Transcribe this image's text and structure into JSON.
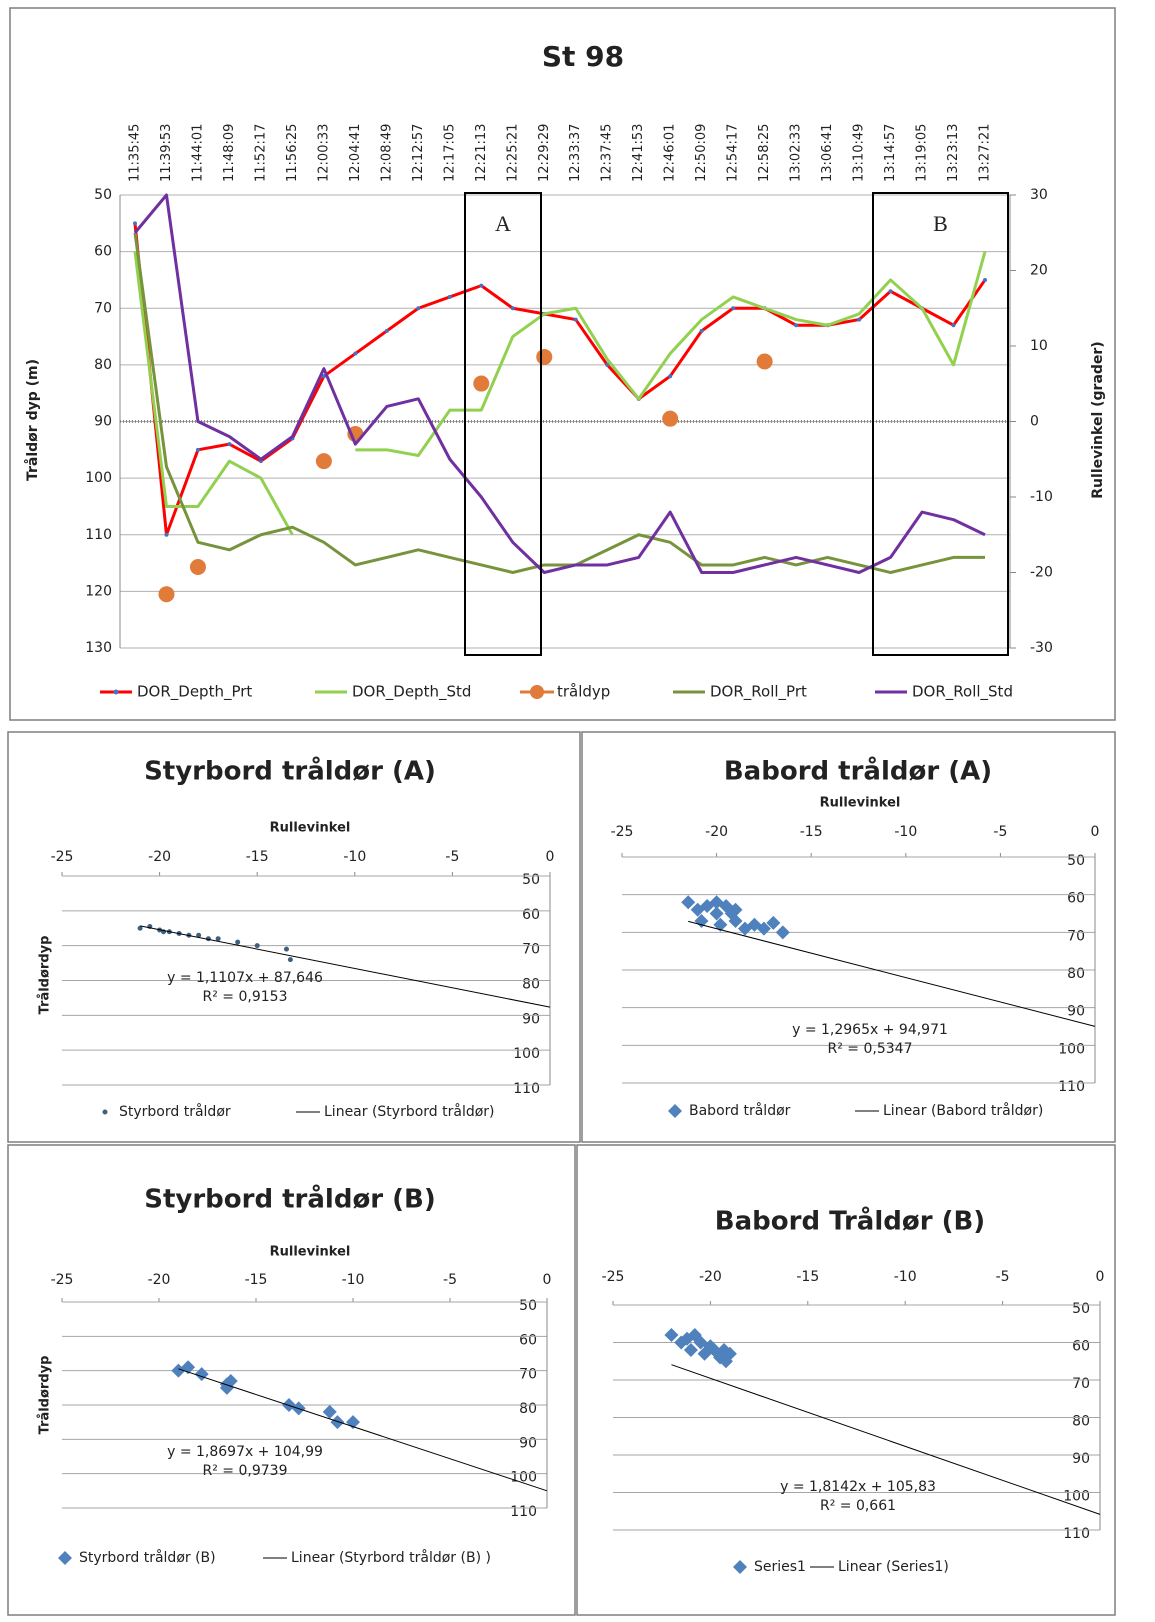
{
  "chart_data": [
    {
      "type": "line",
      "title": "St 98",
      "y_label": "Tråldør dyp (m)",
      "y2_label": "Rullevinkel (grader)",
      "categories": [
        "11:35:45",
        "11:39:53",
        "11:44:01",
        "11:48:09",
        "11:52:17",
        "11:56:25",
        "12:00:33",
        "12:04:41",
        "12:08:49",
        "12:12:57",
        "12:17:05",
        "12:21:13",
        "12:25:21",
        "12:29:29",
        "12:33:37",
        "12:37:45",
        "12:41:53",
        "12:46:01",
        "12:50:09",
        "12:54:17",
        "12:58:25",
        "13:02:33",
        "13:06:41",
        "13:10:49",
        "13:14:57",
        "13:19:05",
        "13:23:13",
        "13:27:21"
      ],
      "ylim": [
        50,
        130
      ],
      "y_reversed": true,
      "yticks": [
        50,
        60,
        70,
        80,
        90,
        100,
        110,
        120,
        130
      ],
      "y2lim": [
        -30,
        30
      ],
      "y2ticks": [
        30,
        20,
        10,
        0,
        -10,
        -20,
        -30
      ],
      "grid": true,
      "series": [
        {
          "name": "DOR_Depth_Prt",
          "color": "#ff0000",
          "marker_color": "#4472c4",
          "line": true,
          "axis": "y",
          "values": [
            55,
            110,
            95,
            94,
            97,
            93,
            82,
            78,
            74,
            70,
            68,
            66,
            70,
            71,
            72,
            80,
            86,
            82,
            74,
            70,
            70,
            73,
            73,
            72,
            67,
            70,
            73,
            65
          ]
        },
        {
          "name": "DOR_Depth_Std",
          "color": "#92d050",
          "line": true,
          "axis": "y",
          "values": [
            60,
            105,
            105,
            97,
            100,
            110,
            null,
            95,
            95,
            96,
            88,
            88,
            75,
            71,
            70,
            79,
            86,
            78,
            72,
            68,
            70,
            72,
            73,
            71,
            65,
            70,
            80,
            60
          ]
        },
        {
          "name": "tråldyp",
          "color": "#e07b39",
          "line": false,
          "marker": "circle",
          "axis": "y",
          "values": [
            null,
            120.5,
            115.7,
            null,
            null,
            null,
            97,
            92.2,
            null,
            null,
            null,
            83.3,
            null,
            78.6,
            null,
            null,
            null,
            89.5,
            null,
            null,
            79.4,
            null,
            null,
            null,
            null,
            null,
            null,
            null
          ]
        },
        {
          "name": "DOR_Roll_Prt",
          "color": "#77933c",
          "line": true,
          "axis": "y2",
          "values": [
            25,
            -6,
            -16,
            -17,
            -15,
            -14,
            -16,
            -19,
            -18,
            -17,
            -18,
            -19,
            -20,
            -19,
            -19,
            -17,
            -15,
            -16,
            -19,
            -19,
            -18,
            -19,
            -18,
            -19,
            -20,
            -19,
            -18,
            -18
          ]
        },
        {
          "name": "DOR_Roll_Std",
          "color": "#7030a0",
          "line": true,
          "axis": "y2",
          "values": [
            25,
            30,
            0,
            -2,
            -5,
            -2,
            7,
            -3,
            2,
            3,
            -5,
            -10,
            -16,
            -20,
            -19,
            -19,
            -18,
            -12,
            -20,
            -20,
            -19,
            -18,
            -19,
            -20,
            -18,
            -12,
            -13,
            -15
          ]
        }
      ],
      "annotations": [
        {
          "text": "A"
        },
        {
          "text": "B"
        }
      ]
    },
    {
      "type": "scatter",
      "title": "Styrbord tråldør (A)",
      "x_label": "Rullevinkel",
      "y_label": "Tråldørdyp",
      "xlim": [
        -25,
        0
      ],
      "xticks": [
        -25,
        -20,
        -15,
        -10,
        -5,
        0
      ],
      "ylim": [
        50,
        110
      ],
      "y_reversed": true,
      "yticks": [
        50,
        60,
        70,
        80,
        90,
        100,
        110
      ],
      "grid": true,
      "series": [
        {
          "name": "Styrbord tråldør",
          "color": "#3f5f7f",
          "marker": "dot",
          "x": [
            -21,
            -20.5,
            -20,
            -19.8,
            -19.5,
            -19,
            -18.5,
            -18,
            -17.5,
            -17,
            -16,
            -15,
            -13.5,
            -13.3
          ],
          "values": [
            65,
            64.5,
            65.5,
            66,
            66,
            66.5,
            67,
            67,
            68,
            68,
            69,
            70,
            71,
            74
          ]
        }
      ],
      "trendline": {
        "name": "Linear (Styrbord tråldør)",
        "color": "#000000",
        "equation": {
          "slope": 1.1107,
          "intercept": 87.646,
          "label": "y = 1,1107x + 87,646"
        },
        "r2": {
          "value": 0.9153,
          "label": "R² = 0,9153"
        }
      }
    },
    {
      "type": "scatter",
      "title": "Babord tråldør (A)",
      "x_label": "Rullevinkel",
      "xlim": [
        -25,
        0
      ],
      "xticks": [
        -25,
        -20,
        -15,
        -10,
        -5,
        0
      ],
      "ylim": [
        50,
        110
      ],
      "y_reversed": true,
      "yticks": [
        50,
        60,
        70,
        80,
        90,
        100,
        110
      ],
      "grid": true,
      "series": [
        {
          "name": "Babord tråldør",
          "color": "#4f81bd",
          "marker": "diamond",
          "x": [
            -21.5,
            -21,
            -20.8,
            -20.5,
            -20,
            -20,
            -19.8,
            -19.5,
            -19.2,
            -19,
            -19,
            -18.5,
            -18,
            -17.5,
            -17,
            -16.5
          ],
          "values": [
            62,
            64,
            67,
            63,
            62,
            65,
            68,
            63,
            65,
            64,
            67,
            69,
            68,
            69,
            67.5,
            70
          ]
        }
      ],
      "trendline": {
        "name": "Linear (Babord tråldør)",
        "color": "#000000",
        "equation": {
          "slope": 1.2965,
          "intercept": 94.971,
          "label": "y = 1,2965x + 94,971"
        },
        "r2": {
          "value": 0.5347,
          "label": "R² = 0,5347"
        }
      }
    },
    {
      "type": "scatter",
      "title": "Styrbord tråldør (B)",
      "x_label": "Rullevinkel",
      "y_label": "Tråldørdyp",
      "xlim": [
        -25,
        0
      ],
      "xticks": [
        -25,
        -20,
        -15,
        -10,
        -5,
        0
      ],
      "ylim": [
        50,
        110
      ],
      "y_reversed": true,
      "yticks": [
        50,
        60,
        70,
        80,
        90,
        100,
        110
      ],
      "grid": true,
      "series": [
        {
          "name": "Styrbord tråldør (B)",
          "color": "#4f81bd",
          "marker": "diamond",
          "x": [
            -19,
            -18.5,
            -17.8,
            -16.5,
            -16.3,
            -16.5,
            -13.3,
            -12.8,
            -11.2,
            -10.8,
            -10
          ],
          "values": [
            70,
            69,
            71,
            74,
            73,
            75,
            80,
            81,
            82,
            85,
            85
          ]
        }
      ],
      "trendline": {
        "name": "Linear (Styrbord tråldør (B) )",
        "color": "#000000",
        "equation": {
          "slope": 1.8697,
          "intercept": 104.99,
          "label": "y = 1,8697x + 104,99"
        },
        "r2": {
          "value": 0.9739,
          "label": "R² = 0,9739"
        }
      }
    },
    {
      "type": "scatter",
      "title": "Babord Tråldør (B)",
      "xlim": [
        -25,
        0
      ],
      "xticks": [
        -25,
        -20,
        -15,
        -10,
        -5,
        0
      ],
      "ylim": [
        50,
        110
      ],
      "y_reversed": true,
      "yticks": [
        50,
        60,
        70,
        80,
        90,
        100,
        110
      ],
      "grid": true,
      "series": [
        {
          "name": "Series1",
          "color": "#4f81bd",
          "marker": "diamond",
          "x": [
            -22,
            -21.5,
            -21.2,
            -21,
            -20.8,
            -20.5,
            -20.3,
            -20,
            -19.8,
            -19.5,
            -19.3,
            -19,
            -19.2
          ],
          "values": [
            58,
            60,
            59,
            62,
            58,
            60,
            63,
            61,
            62,
            64,
            62,
            63,
            65
          ]
        }
      ],
      "trendline": {
        "name": "Linear (Series1)",
        "color": "#000000",
        "equation": {
          "slope": 1.8142,
          "intercept": 105.83,
          "label": "y = 1,8142x + 105,83"
        },
        "r2": {
          "value": 0.661,
          "label": "R² = 0,661"
        }
      }
    }
  ]
}
